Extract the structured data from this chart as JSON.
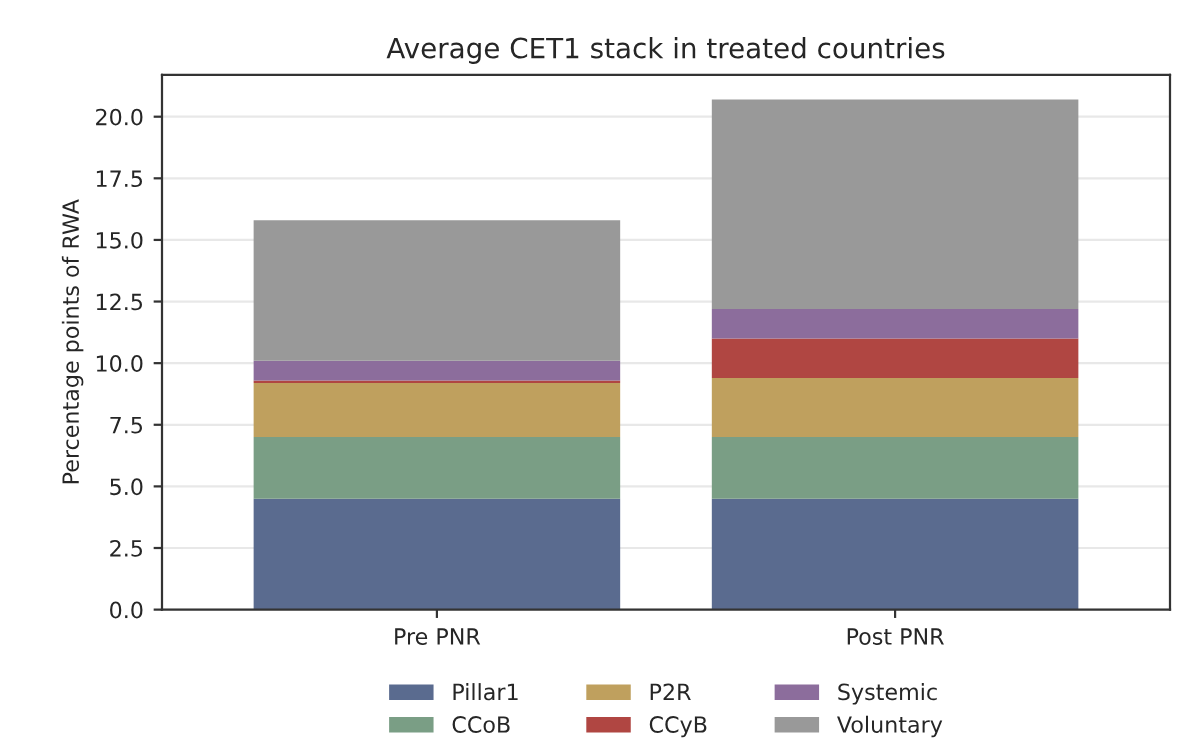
{
  "chart_data": {
    "type": "bar",
    "title": "Average CET1 stack in treated countries",
    "ylabel": "Percentage points of RWA",
    "categories": [
      "Pre PNR",
      "Post PNR"
    ],
    "stacked": true,
    "series": [
      {
        "name": "Pillar1",
        "color": "#5a6b8f",
        "values": [
          4.5,
          4.5
        ]
      },
      {
        "name": "CCoB",
        "color": "#7a9e85",
        "values": [
          2.5,
          2.5
        ]
      },
      {
        "name": "P2R",
        "color": "#bfa05e",
        "values": [
          2.2,
          2.4
        ]
      },
      {
        "name": "CCyB",
        "color": "#b04642",
        "values": [
          0.1,
          1.6
        ]
      },
      {
        "name": "Systemic",
        "color": "#8c6d9c",
        "values": [
          0.8,
          1.2
        ]
      },
      {
        "name": "Voluntary",
        "color": "#999999",
        "values": [
          5.7,
          8.5
        ]
      }
    ],
    "ylim": [
      0,
      21.7
    ],
    "yticks": [
      {
        "value": 0,
        "label": "0.0"
      },
      {
        "value": 2.5,
        "label": "2.5"
      },
      {
        "value": 5,
        "label": "5.0"
      },
      {
        "value": 7.5,
        "label": "7.5"
      },
      {
        "value": 10,
        "label": "10.0"
      },
      {
        "value": 12.5,
        "label": "12.5"
      },
      {
        "value": 15,
        "label": "15.0"
      },
      {
        "value": 17.5,
        "label": "17.5"
      },
      {
        "value": 20,
        "label": "20.0"
      }
    ],
    "grid": "y",
    "legend": "bottom"
  }
}
